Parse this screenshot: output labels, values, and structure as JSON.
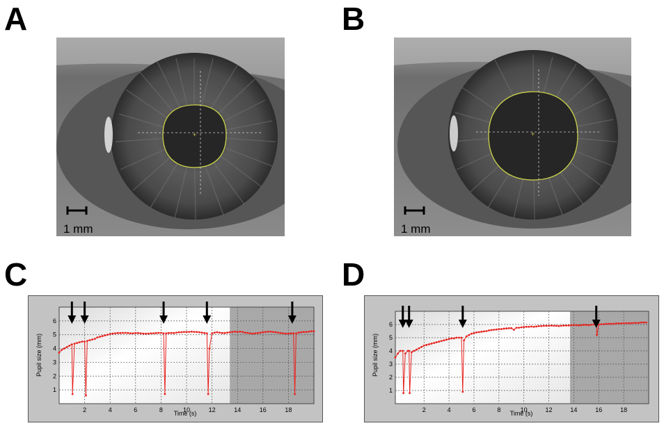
{
  "panels": {
    "A": "A",
    "B": "B",
    "C": "C",
    "D": "D"
  },
  "images": {
    "A": {
      "scale_bar_label": "1 mm"
    },
    "B": {
      "scale_bar_label": "1 mm"
    }
  },
  "chart_data": [
    {
      "type": "line",
      "panel": "C",
      "xlabel": "Time (s)",
      "ylabel": "Pupil size (mm)",
      "xlim": [
        0,
        20
      ],
      "ylim": [
        0,
        7
      ],
      "xticks": [
        2,
        4,
        6,
        8,
        10,
        12,
        14,
        16,
        18
      ],
      "yticks": [
        1,
        2,
        3,
        4,
        5,
        6
      ],
      "grid": true,
      "color": "#e8221e",
      "arrow_times": [
        1.0,
        2.0,
        8.2,
        11.6,
        18.3
      ],
      "series": [
        {
          "x": [
            0.0,
            0.2,
            0.4,
            0.6,
            0.8,
            1.0,
            1.05,
            1.2,
            1.4,
            1.6,
            1.8,
            2.0,
            2.1,
            2.2,
            2.4,
            2.6,
            2.8,
            3.0,
            3.2,
            3.4,
            3.6,
            3.8,
            4.0,
            4.2,
            4.4,
            4.6,
            4.8,
            5.0,
            5.2,
            5.4,
            5.6,
            5.8,
            6.0,
            6.2,
            6.4,
            6.6,
            6.8,
            7.0,
            7.2,
            7.4,
            7.6,
            7.8,
            8.0,
            8.2,
            8.3,
            8.4,
            8.6,
            8.8,
            9.0,
            9.2,
            9.4,
            9.6,
            9.8,
            10.0,
            10.2,
            10.4,
            10.6,
            10.8,
            11.0,
            11.2,
            11.4,
            11.6,
            11.7,
            11.8,
            12.0,
            12.2,
            12.4,
            12.6,
            12.8,
            13.0,
            13.2,
            13.4,
            13.6,
            13.8,
            14.0,
            14.2,
            14.4,
            14.6,
            14.8,
            15.0,
            15.2,
            15.4,
            15.6,
            15.8,
            16.0,
            16.2,
            16.4,
            16.6,
            16.8,
            17.0,
            17.2,
            17.4,
            17.6,
            17.8,
            18.0,
            18.2,
            18.4,
            18.5,
            18.6,
            18.8,
            19.0,
            19.2,
            19.4,
            19.6,
            19.8,
            20.0
          ],
          "y": [
            3.7,
            3.9,
            4.0,
            4.1,
            4.2,
            4.3,
            0.7,
            4.35,
            4.4,
            4.45,
            4.5,
            4.5,
            0.6,
            4.55,
            4.6,
            4.65,
            4.7,
            4.8,
            4.85,
            4.9,
            4.95,
            5.0,
            5.05,
            5.08,
            5.1,
            5.12,
            5.12,
            5.13,
            5.13,
            5.12,
            5.1,
            5.1,
            5.12,
            5.12,
            5.1,
            5.08,
            5.07,
            5.08,
            5.1,
            5.1,
            5.12,
            5.13,
            5.13,
            5.1,
            0.7,
            5.1,
            5.12,
            5.13,
            5.12,
            5.15,
            5.18,
            5.18,
            5.2,
            5.2,
            5.2,
            5.22,
            5.2,
            5.2,
            5.18,
            5.15,
            5.12,
            5.1,
            0.7,
            4.0,
            5.1,
            5.15,
            5.18,
            5.15,
            5.12,
            5.12,
            5.15,
            5.18,
            5.2,
            5.22,
            5.2,
            5.22,
            5.2,
            5.15,
            5.13,
            5.1,
            5.08,
            5.1,
            5.12,
            5.15,
            5.18,
            5.2,
            5.22,
            5.22,
            5.2,
            5.18,
            5.15,
            5.12,
            5.1,
            5.08,
            5.08,
            5.1,
            5.1,
            0.7,
            5.1,
            5.15,
            5.18,
            5.2,
            5.2,
            5.22,
            5.25,
            5.25
          ]
        }
      ]
    },
    {
      "type": "line",
      "panel": "D",
      "xlabel": "Time (s)",
      "ylabel": "Pupil size (mm)",
      "xlim": [
        -0.3,
        20
      ],
      "ylim": [
        0,
        7
      ],
      "xticks": [
        2,
        4,
        6,
        8,
        10,
        12,
        14,
        16,
        18
      ],
      "yticks": [
        1,
        2,
        3,
        4,
        5,
        6
      ],
      "grid": true,
      "color": "#e8221e",
      "arrow_times": [
        0.3,
        0.8,
        5.1,
        15.8
      ],
      "series": [
        {
          "x": [
            -0.3,
            -0.1,
            0.1,
            0.3,
            0.35,
            0.5,
            0.7,
            0.8,
            0.85,
            1.0,
            1.2,
            1.4,
            1.6,
            1.8,
            2.0,
            2.2,
            2.4,
            2.6,
            2.8,
            3.0,
            3.2,
            3.4,
            3.6,
            3.8,
            4.0,
            4.2,
            4.4,
            4.6,
            4.8,
            5.0,
            5.1,
            5.2,
            5.4,
            5.6,
            5.8,
            6.0,
            6.2,
            6.4,
            6.6,
            6.8,
            7.0,
            7.2,
            7.4,
            7.6,
            7.8,
            8.0,
            8.2,
            8.4,
            8.6,
            8.8,
            9.0,
            9.2,
            9.4,
            9.6,
            9.8,
            10.0,
            10.2,
            10.4,
            10.6,
            10.8,
            11.0,
            11.2,
            11.4,
            11.6,
            11.8,
            12.0,
            12.2,
            12.4,
            12.6,
            12.8,
            13.0,
            13.2,
            13.4,
            13.6,
            13.8,
            14.0,
            14.2,
            14.4,
            14.6,
            14.8,
            15.0,
            15.2,
            15.4,
            15.6,
            15.8,
            15.85,
            16.0,
            16.2,
            16.4,
            16.6,
            16.8,
            17.0,
            17.2,
            17.4,
            17.6,
            17.8,
            18.0,
            18.2,
            18.4,
            18.6,
            18.8,
            19.0,
            19.2,
            19.4,
            19.6,
            19.8
          ],
          "y": [
            3.5,
            3.8,
            4.0,
            4.0,
            0.8,
            3.8,
            4.0,
            4.0,
            0.8,
            3.9,
            4.0,
            4.1,
            4.2,
            4.3,
            4.4,
            4.45,
            4.5,
            4.55,
            4.6,
            4.65,
            4.7,
            4.75,
            4.8,
            4.85,
            4.9,
            4.95,
            4.95,
            5.0,
            5.0,
            5.0,
            0.9,
            4.8,
            5.1,
            5.2,
            5.3,
            5.35,
            5.4,
            5.42,
            5.45,
            5.48,
            5.5,
            5.55,
            5.58,
            5.6,
            5.62,
            5.65,
            5.65,
            5.68,
            5.7,
            5.72,
            5.72,
            5.6,
            5.75,
            5.75,
            5.78,
            5.8,
            5.82,
            5.82,
            5.85,
            5.82,
            5.85,
            5.88,
            5.88,
            5.9,
            5.9,
            5.9,
            5.92,
            5.9,
            5.9,
            5.88,
            5.9,
            5.92,
            5.92,
            5.92,
            5.95,
            5.95,
            5.95,
            5.93,
            5.95,
            5.97,
            5.97,
            5.95,
            5.98,
            6.0,
            6.0,
            5.2,
            6.0,
            6.02,
            6.02,
            6.05,
            6.05,
            6.05,
            6.05,
            6.08,
            6.08,
            6.08,
            6.1,
            6.1,
            6.1,
            6.1,
            6.12,
            6.12,
            6.12,
            6.15,
            6.15,
            6.15
          ]
        }
      ]
    }
  ]
}
